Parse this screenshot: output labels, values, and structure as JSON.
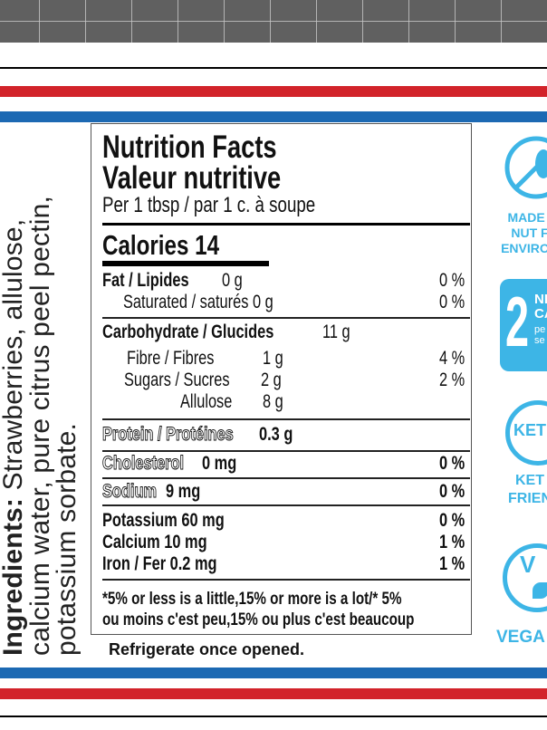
{
  "colors": {
    "red": "#d2232a",
    "blue": "#1c69b3",
    "icon_blue": "#3db5e6",
    "grid": "#606060"
  },
  "ingredients": {
    "label": "Ingredients:",
    "text": " Strawberries, allulose, calcium water, pure citrus peel pectin, potassium sorbate."
  },
  "nutrition": {
    "title_en": "Nutrition Facts",
    "title_fr": "Valeur nutritive",
    "serving": "Per 1 tbsp / par 1 c. à soupe",
    "calories": "Calories 14",
    "fat": {
      "label": "Fat / Lipides",
      "value": "0 g",
      "dv": "0 %"
    },
    "saturated": {
      "label": "Saturated / saturés 0 g",
      "dv": "0 %"
    },
    "carb": {
      "label": "Carbohydrate / Glucides",
      "value": "11 g"
    },
    "fibre": {
      "label": "Fibre / Fibres",
      "value": "1 g",
      "dv": "4 %"
    },
    "sugars": {
      "label": "Sugars / Sucres",
      "value": "2 g",
      "dv": "2 %"
    },
    "allulose": {
      "label": "Allulose",
      "value": "8 g"
    },
    "protein": {
      "label": "Protein / Protéines",
      "value": "0.3 g"
    },
    "cholesterol": {
      "label": "Cholesterol",
      "value": "0 mg",
      "dv": "0 %"
    },
    "sodium": {
      "label": "Sodium",
      "value": "9 mg",
      "dv": "0 %"
    },
    "potassium": {
      "label": "Potassium 60 mg",
      "dv": "0 %"
    },
    "calcium": {
      "label": "Calcium 10 mg",
      "dv": "1 %"
    },
    "iron": {
      "label": "Iron / Fer 0.2 mg",
      "dv": "1 %"
    },
    "footnote_1": "*5% or less is a little,15% or more is a lot/* 5%",
    "footnote_2": "ou moins c'est peu,15% ou plus c'est beaucoup"
  },
  "storage": "Refrigerate once opened.",
  "badges": {
    "nut_free": [
      "MADE I",
      "NUT F",
      "ENVIRON"
    ],
    "carbs": {
      "number": "2",
      "lines": [
        "NE",
        "CA",
        "pe",
        "se"
      ]
    },
    "keto": {
      "icon": "KET",
      "lines": [
        "KET",
        "FRIEN"
      ]
    },
    "vegan": {
      "icon": "V",
      "lines": [
        "VEGA"
      ]
    }
  }
}
